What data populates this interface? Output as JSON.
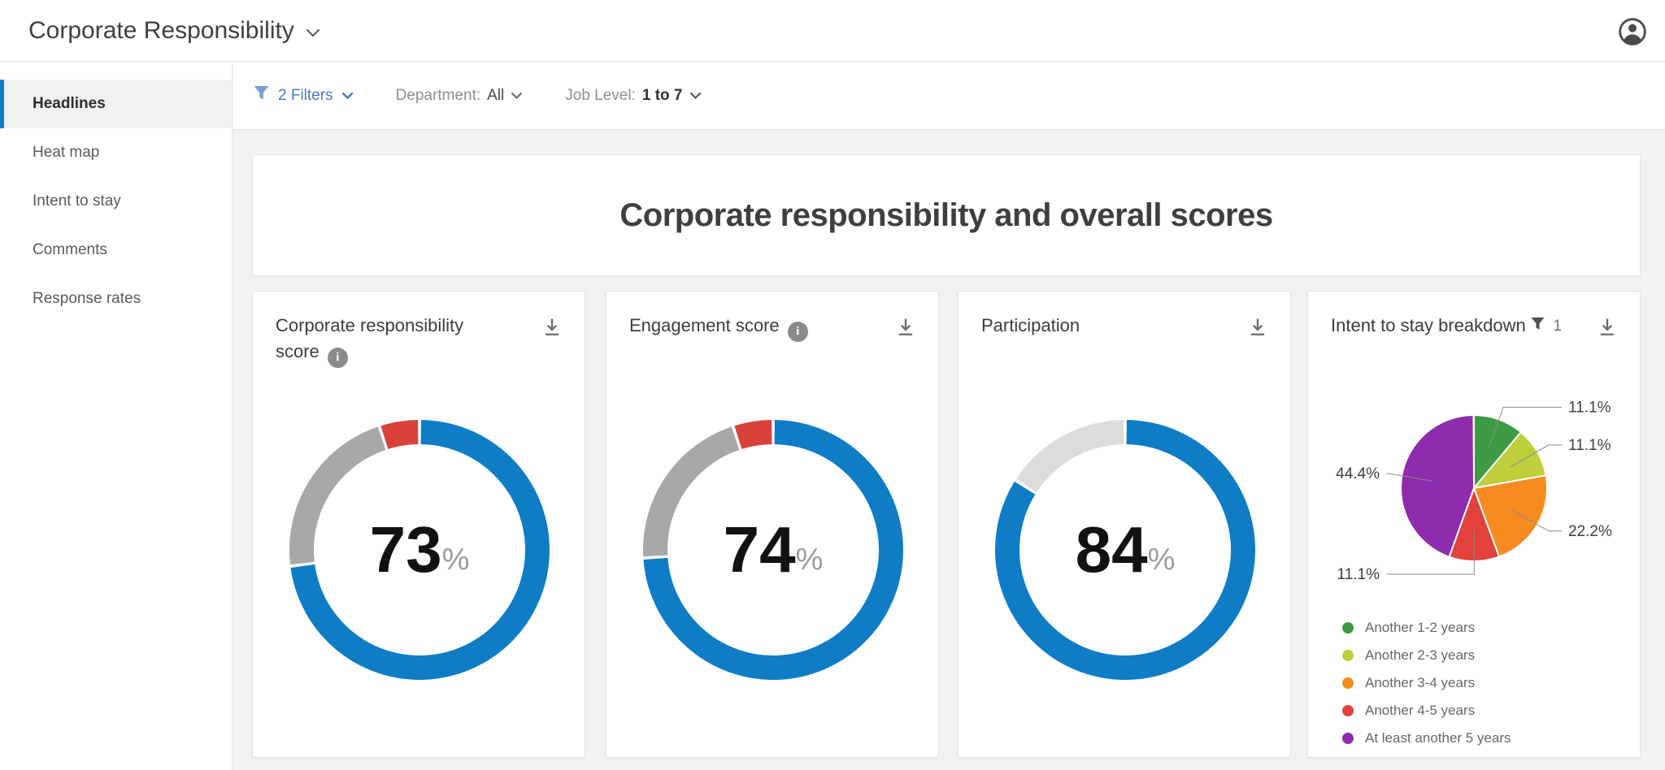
{
  "header": {
    "title": "Corporate Responsibility"
  },
  "sidebar": {
    "items": [
      {
        "label": "Headlines",
        "active": true
      },
      {
        "label": "Heat map",
        "active": false
      },
      {
        "label": "Intent to stay",
        "active": false
      },
      {
        "label": "Comments",
        "active": false
      },
      {
        "label": "Response rates",
        "active": false
      }
    ]
  },
  "filter_bar": {
    "filters_label": "2 Filters",
    "department_label": "Department:",
    "department_value": "All",
    "job_level_label": "Job Level:",
    "job_level_value": "1 to 7"
  },
  "main": {
    "heading": "Corporate responsibility and overall scores"
  },
  "cards": [
    {
      "title": "Corporate responsibility score",
      "has_info": true,
      "has_download": true
    },
    {
      "title": "Engagement score",
      "has_info": true,
      "has_download": true
    },
    {
      "title": "Participation",
      "has_info": false,
      "has_download": true
    },
    {
      "title": "Intent to stay breakdown",
      "filter_count": "1",
      "has_download": true
    }
  ],
  "colors": {
    "accent_blue": "#0e7dc6",
    "filter_blue": "#4a79c8",
    "neutral_gray": "#a8a8a8",
    "unfavorable_red": "#d8423b",
    "remainder_gray": "#dcdcdc"
  },
  "chart_data": [
    {
      "type": "donut",
      "title": "Corporate responsibility score",
      "value": 73,
      "unit": "%",
      "segments": [
        {
          "name": "favorable",
          "value": 73,
          "color": "#0e7dc6"
        },
        {
          "name": "neutral",
          "value": 22,
          "color": "#a8a8a8"
        },
        {
          "name": "unfavorable",
          "value": 5,
          "color": "#d8423b"
        }
      ]
    },
    {
      "type": "donut",
      "title": "Engagement score",
      "value": 74,
      "unit": "%",
      "segments": [
        {
          "name": "favorable",
          "value": 74,
          "color": "#0e7dc6"
        },
        {
          "name": "neutral",
          "value": 21,
          "color": "#a8a8a8"
        },
        {
          "name": "unfavorable",
          "value": 5,
          "color": "#d8423b"
        }
      ]
    },
    {
      "type": "donut",
      "title": "Participation",
      "value": 84,
      "unit": "%",
      "segments": [
        {
          "name": "participated",
          "value": 84,
          "color": "#0e7dc6"
        },
        {
          "name": "remainder",
          "value": 16,
          "color": "#dcdcdc"
        }
      ]
    },
    {
      "type": "pie",
      "title": "Intent to stay breakdown",
      "slices": [
        {
          "label": "Another 1-2 years",
          "value": 11.1,
          "pct": "11.1%",
          "color": "#3f9b43",
          "label_side": "right"
        },
        {
          "label": "Another 2-3 years",
          "value": 11.1,
          "pct": "11.1%",
          "color": "#bfce3b",
          "label_side": "right"
        },
        {
          "label": "Another 3-4 years",
          "value": 22.2,
          "pct": "22.2%",
          "color": "#f68b1f",
          "label_side": "right"
        },
        {
          "label": "Another 4-5 years",
          "value": 11.1,
          "pct": "11.1%",
          "color": "#e2413c",
          "label_side": "left"
        },
        {
          "label": "At least another 5 years",
          "value": 44.4,
          "pct": "44.4%",
          "color": "#8f2bad",
          "label_side": "left"
        }
      ],
      "legend_position": "bottom"
    }
  ]
}
